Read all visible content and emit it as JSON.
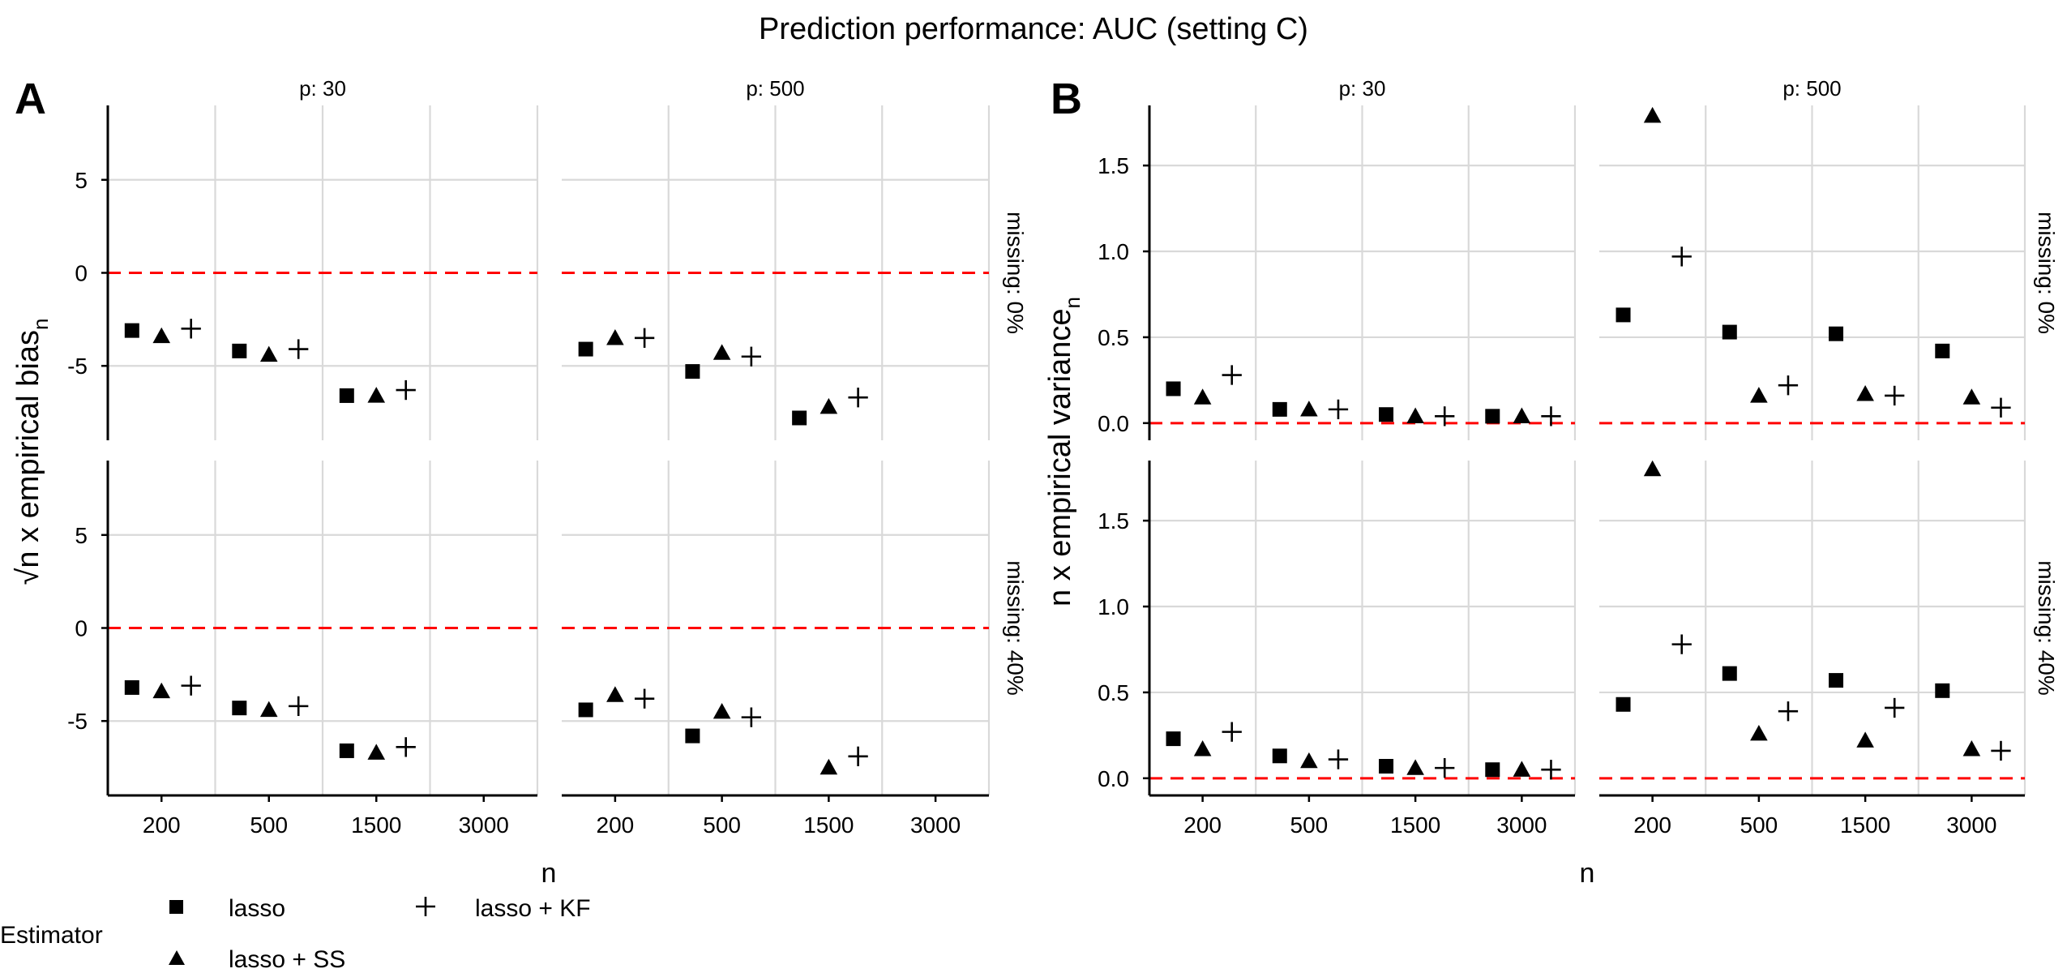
{
  "figure": {
    "title": "Prediction performance: AUC (setting C)"
  },
  "colors": {
    "grid": "#d9d9d9",
    "axis": "#000000",
    "marker": "#000000",
    "reference_line": "#ff0000"
  },
  "legend": {
    "title": "Estimator",
    "entries": [
      {
        "label": "lasso",
        "shape": "square"
      },
      {
        "label": "lasso + SS",
        "shape": "triangle"
      },
      {
        "label": "lasso + KF",
        "shape": "plus"
      }
    ]
  },
  "chart_data": [
    {
      "panel_tag": "A",
      "type": "scatter",
      "facet_columns": [
        "p: 30",
        "p: 500"
      ],
      "facet_rows": [
        "missing: 0%",
        "missing: 40%"
      ],
      "xlabel": "n",
      "ylabel_main": "√n x empirical bias",
      "ylabel_sub": "n",
      "categories": [
        "200",
        "500",
        "1500",
        "3000"
      ],
      "y_ticks": [
        -5,
        0,
        5
      ],
      "ylim": [
        -9,
        9
      ],
      "reference_line_y": 0,
      "series_names": [
        "lasso",
        "lasso + SS",
        "lasso + KF"
      ],
      "cells": [
        {
          "col": 0,
          "row": 0,
          "series": [
            [
              -3.1,
              -4.2,
              -6.6,
              null
            ],
            [
              -3.4,
              -4.4,
              -6.6,
              null
            ],
            [
              -3.0,
              -4.1,
              -6.3,
              null
            ]
          ]
        },
        {
          "col": 1,
          "row": 0,
          "series": [
            [
              -4.1,
              -5.3,
              -7.8,
              null
            ],
            [
              -3.5,
              -4.3,
              -7.2,
              null
            ],
            [
              -3.5,
              -4.5,
              -6.7,
              null
            ]
          ]
        },
        {
          "col": 0,
          "row": 1,
          "series": [
            [
              -3.2,
              -4.3,
              -6.6,
              null
            ],
            [
              -3.4,
              -4.4,
              -6.7,
              null
            ],
            [
              -3.1,
              -4.2,
              -6.4,
              null
            ]
          ]
        },
        {
          "col": 1,
          "row": 1,
          "series": [
            [
              -4.4,
              -5.8,
              null,
              null
            ],
            [
              -3.6,
              -4.5,
              -7.5,
              null
            ],
            [
              -3.8,
              -4.8,
              -6.9,
              null
            ]
          ]
        }
      ]
    },
    {
      "panel_tag": "B",
      "type": "scatter",
      "facet_columns": [
        "p: 30",
        "p: 500"
      ],
      "facet_rows": [
        "missing: 0%",
        "missing: 40%"
      ],
      "xlabel": "n",
      "ylabel_main": "n x empirical variance",
      "ylabel_sub": "n",
      "categories": [
        "200",
        "500",
        "1500",
        "3000"
      ],
      "y_ticks": [
        0.0,
        0.5,
        1.0,
        1.5
      ],
      "y_tick_labels": [
        "0.0",
        "0.5",
        "1.0",
        "1.5"
      ],
      "ylim": [
        -0.1,
        1.85
      ],
      "reference_line_y": 0,
      "series_names": [
        "lasso",
        "lasso + SS",
        "lasso + KF"
      ],
      "cells": [
        {
          "col": 0,
          "row": 0,
          "series": [
            [
              0.2,
              0.08,
              0.05,
              0.04
            ],
            [
              0.15,
              0.08,
              0.04,
              0.04
            ],
            [
              0.28,
              0.08,
              0.04,
              0.04
            ]
          ]
        },
        {
          "col": 1,
          "row": 0,
          "series": [
            [
              0.63,
              0.53,
              0.52,
              0.42
            ],
            [
              1.79,
              0.16,
              0.17,
              0.15
            ],
            [
              0.97,
              0.22,
              0.16,
              0.09
            ]
          ]
        },
        {
          "col": 0,
          "row": 1,
          "series": [
            [
              0.23,
              0.13,
              0.07,
              0.05
            ],
            [
              0.17,
              0.1,
              0.06,
              0.05
            ],
            [
              0.27,
              0.11,
              0.06,
              0.05
            ]
          ]
        },
        {
          "col": 1,
          "row": 1,
          "series": [
            [
              0.43,
              0.61,
              0.57,
              0.51
            ],
            [
              1.8,
              0.26,
              0.22,
              0.17
            ],
            [
              0.78,
              0.39,
              0.41,
              0.16
            ]
          ]
        }
      ]
    }
  ]
}
